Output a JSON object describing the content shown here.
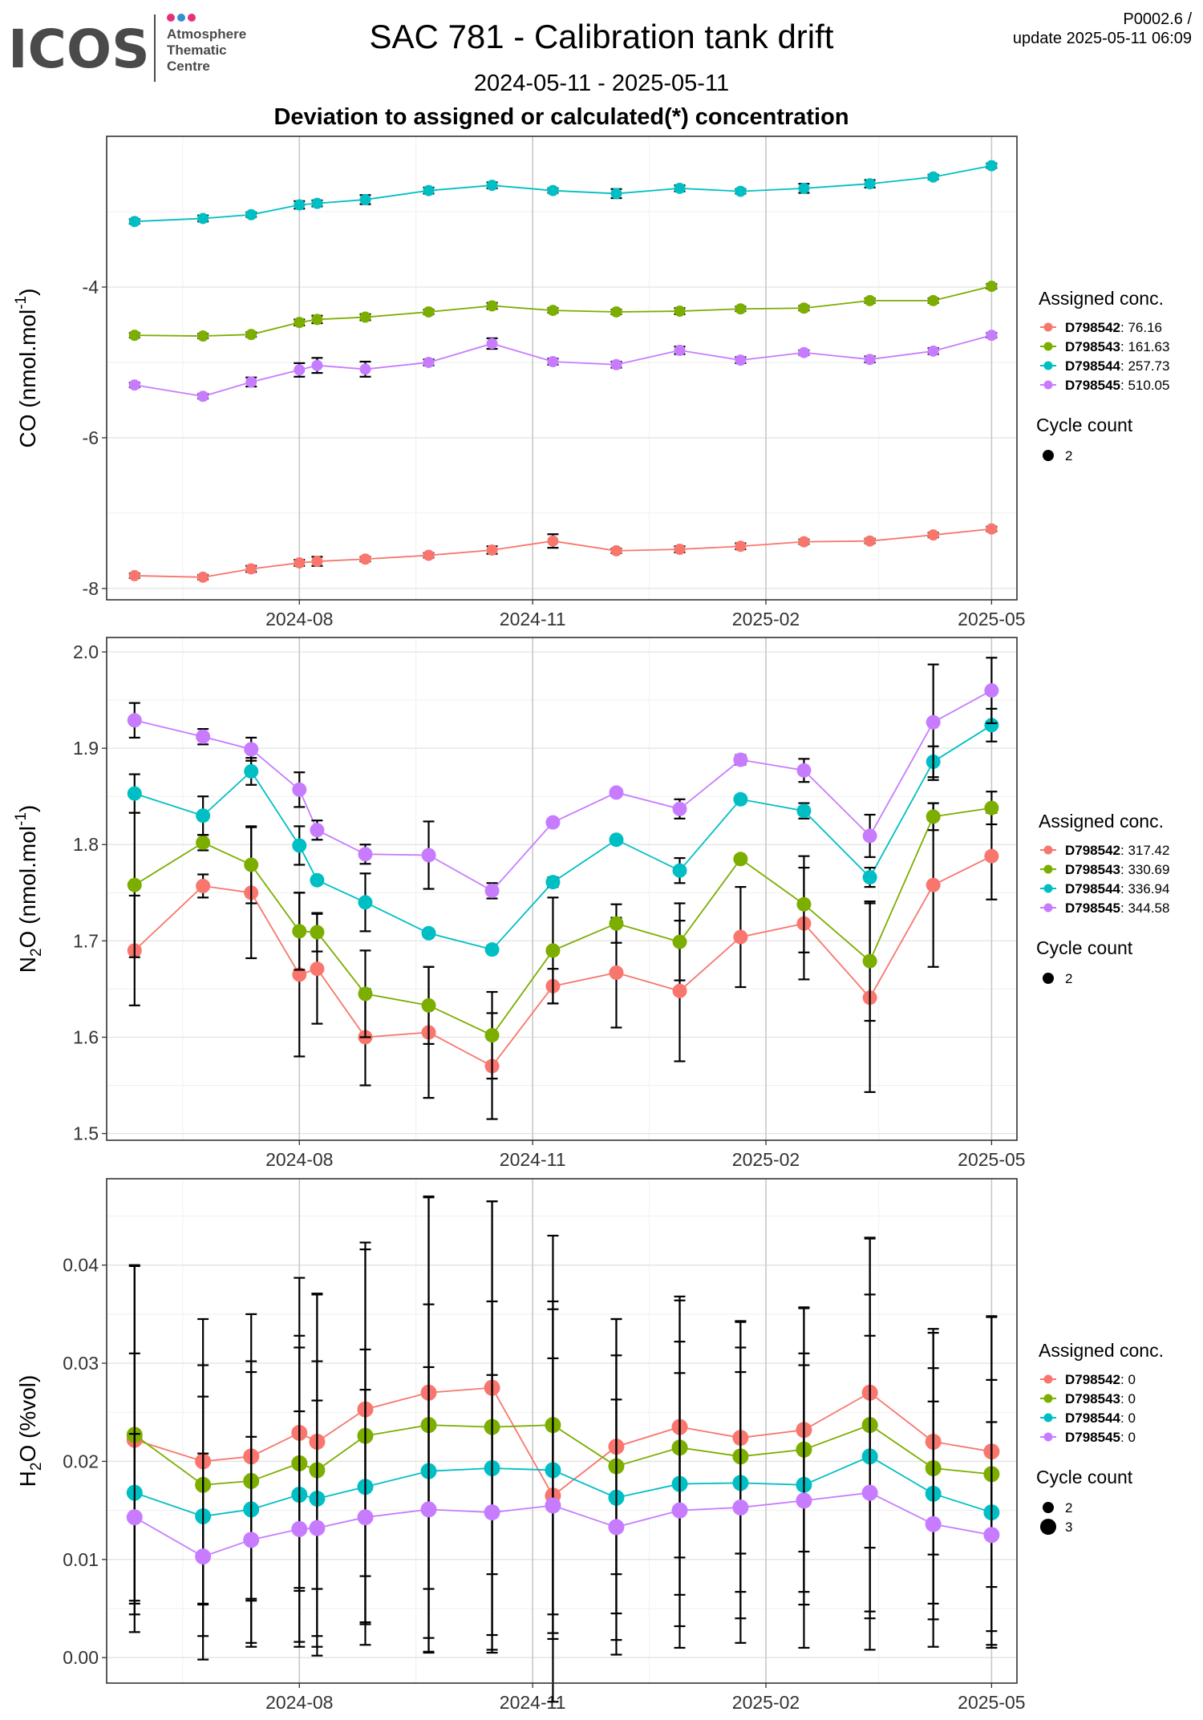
{
  "header": {
    "logo_text": "ICOS",
    "logo_sub": [
      "Atmosphere",
      "Thematic",
      "Centre"
    ],
    "title": "SAC 781 - Calibration tank drift",
    "date_range": "2024-05-11 - 2025-05-11",
    "subtitle": "Deviation to assigned or calculated(*) concentration",
    "version": "P0002.6 /",
    "update": "update  2025-05-11 06:09"
  },
  "colors": {
    "D798542": "#F8766D",
    "D798543": "#7CAE00",
    "D798544": "#00BFC4",
    "D798545": "#C77CFF",
    "logo_dots": [
      "#e6317a",
      "#2f93d1",
      "#e6317a"
    ]
  },
  "chart_data": [
    {
      "type": "line",
      "ylabel": "CO (nmol.mol-1)",
      "ylabel_base": "CO (nmol.mol",
      "ylabel_sup": "-1",
      "ylabel_end": ")",
      "ylim": [
        -8.15,
        -2.0
      ],
      "yticks": [
        -8,
        -6,
        -4
      ],
      "xlim": [
        "2024-05-17",
        "2025-05-11"
      ],
      "xticks": [
        "2024-08-01",
        "2024-11-01",
        "2025-02-01",
        "2025-05-01"
      ],
      "xtick_labels": [
        "2024-08",
        "2024-11",
        "2025-02",
        "2025-05"
      ],
      "legend_title": "Assigned conc.",
      "size_title": "Cycle count",
      "size_entries": [
        {
          "label": "2",
          "r": 7
        }
      ],
      "legend": [
        {
          "id": "D798542",
          "value": ": 76.16"
        },
        {
          "id": "D798543",
          "value": ": 161.63"
        },
        {
          "id": "D798544",
          "value": ": 257.73"
        },
        {
          "id": "D798545",
          "value": ": 510.05"
        }
      ],
      "x": [
        "2024-05-28",
        "2024-06-24",
        "2024-07-13",
        "2024-08-01",
        "2024-08-08",
        "2024-08-27",
        "2024-09-21",
        "2024-10-16",
        "2024-11-09",
        "2024-12-04",
        "2024-12-29",
        "2025-01-22",
        "2025-02-16",
        "2025-03-14",
        "2025-04-08",
        "2025-05-01"
      ],
      "series": [
        {
          "id": "D798542",
          "y": [
            -7.83,
            -7.85,
            -7.74,
            -7.66,
            -7.64,
            -7.61,
            -7.56,
            -7.49,
            -7.37,
            -7.5,
            -7.48,
            -7.44,
            -7.38,
            -7.37,
            -7.29,
            -7.21
          ],
          "err": [
            0.03,
            0.03,
            0.04,
            0.04,
            0.06,
            0.03,
            0.03,
            0.05,
            0.09,
            0.03,
            0.04,
            0.04,
            0.03,
            0.03,
            0.03,
            0.03
          ]
        },
        {
          "id": "D798543",
          "y": [
            -4.64,
            -4.65,
            -4.63,
            -4.47,
            -4.43,
            -4.4,
            -4.33,
            -4.25,
            -4.31,
            -4.33,
            -4.32,
            -4.29,
            -4.28,
            -4.18,
            -4.18,
            -3.99
          ],
          "err": [
            0.03,
            0.03,
            0.03,
            0.04,
            0.05,
            0.04,
            0.03,
            0.04,
            0.03,
            0.03,
            0.04,
            0.03,
            0.03,
            0.03,
            0.03,
            0.03
          ]
        },
        {
          "id": "D798544",
          "y": [
            -3.13,
            -3.09,
            -3.04,
            -2.91,
            -2.89,
            -2.84,
            -2.72,
            -2.65,
            -2.72,
            -2.76,
            -2.69,
            -2.73,
            -2.69,
            -2.63,
            -2.54,
            -2.39
          ],
          "err": [
            0.03,
            0.04,
            0.03,
            0.05,
            0.04,
            0.06,
            0.04,
            0.04,
            0.03,
            0.06,
            0.04,
            0.03,
            0.06,
            0.05,
            0.03,
            0.03
          ]
        },
        {
          "id": "D798545",
          "y": [
            -5.3,
            -5.45,
            -5.26,
            -5.1,
            -5.04,
            -5.09,
            -5.0,
            -4.75,
            -4.99,
            -5.03,
            -4.84,
            -4.97,
            -4.87,
            -4.96,
            -4.85,
            -4.64
          ],
          "err": [
            0.03,
            0.03,
            0.06,
            0.09,
            0.1,
            0.1,
            0.04,
            0.07,
            0.04,
            0.04,
            0.05,
            0.04,
            0.03,
            0.04,
            0.04,
            0.03
          ]
        }
      ]
    },
    {
      "type": "line",
      "ylabel": "N2O (nmol.mol-1)",
      "ylabel_base": "N",
      "ylabel_sub": "2",
      "ylabel_mid": "O (nmol.mol",
      "ylabel_sup": "-1",
      "ylabel_end": ")",
      "ylim": [
        1.493,
        2.015
      ],
      "yticks": [
        1.5,
        1.6,
        1.7,
        1.8,
        1.9,
        2.0
      ],
      "ytick_labels": [
        "1.5",
        "1.6",
        "1.7",
        "1.8",
        "1.9",
        "2.0"
      ],
      "xlim": [
        "2024-05-17",
        "2025-05-11"
      ],
      "xticks": [
        "2024-08-01",
        "2024-11-01",
        "2025-02-01",
        "2025-05-01"
      ],
      "xtick_labels": [
        "2024-08",
        "2024-11",
        "2025-02",
        "2025-05"
      ],
      "legend_title": "Assigned conc.",
      "size_title": "Cycle count",
      "size_entries": [
        {
          "label": "2",
          "r": 7
        }
      ],
      "legend": [
        {
          "id": "D798542",
          "value": ": 317.42"
        },
        {
          "id": "D798543",
          "value": ": 330.69"
        },
        {
          "id": "D798544",
          "value": ": 336.94"
        },
        {
          "id": "D798545",
          "value": ": 344.58"
        }
      ],
      "x": [
        "2024-05-28",
        "2024-06-24",
        "2024-07-13",
        "2024-08-01",
        "2024-08-08",
        "2024-08-27",
        "2024-09-21",
        "2024-10-16",
        "2024-11-09",
        "2024-12-04",
        "2024-12-29",
        "2025-01-22",
        "2025-02-16",
        "2025-03-14",
        "2025-04-08",
        "2025-05-01"
      ],
      "series": [
        {
          "id": "D798542",
          "y": [
            1.69,
            1.757,
            1.75,
            1.665,
            1.671,
            1.6,
            1.605,
            1.57,
            1.653,
            1.667,
            1.648,
            1.704,
            1.718,
            1.641,
            1.758,
            1.788
          ],
          "err": [
            0.057,
            0.012,
            0.068,
            0.085,
            0.057,
            0.05,
            0.068,
            0.055,
            0.018,
            0.057,
            0.073,
            0.052,
            0.058,
            0.098,
            0.085,
            0.045
          ]
        },
        {
          "id": "D798543",
          "y": [
            1.758,
            1.802,
            1.779,
            1.71,
            1.709,
            1.645,
            1.633,
            1.602,
            1.69,
            1.718,
            1.699,
            1.785,
            1.738,
            1.679,
            1.829,
            1.838
          ],
          "err": [
            0.075,
            0.008,
            0.04,
            0.04,
            0.02,
            0.045,
            0.04,
            0.045,
            0.055,
            0.02,
            0.04,
            0.003,
            0.05,
            0.062,
            0.014,
            0.017
          ]
        },
        {
          "id": "D798544",
          "y": [
            1.853,
            1.83,
            1.876,
            1.799,
            1.763,
            1.74,
            1.708,
            1.691,
            1.761,
            1.805,
            1.773,
            1.847,
            1.835,
            1.766,
            1.886,
            1.924
          ],
          "err": [
            0.02,
            0.02,
            0.014,
            0.02,
            0.004,
            0.03,
            0.004,
            0.003,
            0.005,
            0.003,
            0.013,
            0.004,
            0.008,
            0.01,
            0.016,
            0.017
          ]
        },
        {
          "id": "D798545",
          "y": [
            1.929,
            1.912,
            1.899,
            1.857,
            1.815,
            1.79,
            1.789,
            1.752,
            1.823,
            1.854,
            1.837,
            1.888,
            1.877,
            1.809,
            1.927,
            1.96
          ],
          "err": [
            0.018,
            0.008,
            0.012,
            0.018,
            0.01,
            0.01,
            0.035,
            0.008,
            0.003,
            0.003,
            0.01,
            0.005,
            0.012,
            0.022,
            0.06,
            0.034
          ]
        }
      ]
    },
    {
      "type": "line",
      "ylabel": "H2O (%vol)",
      "ylabel_base": "H",
      "ylabel_sub": "2",
      "ylabel_mid": "O (%vol)",
      "ylim": [
        -0.0026,
        0.0488
      ],
      "yticks": [
        0.0,
        0.01,
        0.02,
        0.03,
        0.04
      ],
      "ytick_labels": [
        "0.00",
        "0.01",
        "0.02",
        "0.03",
        "0.04"
      ],
      "xlim": [
        "2024-05-17",
        "2025-05-11"
      ],
      "xticks": [
        "2024-08-01",
        "2024-11-01",
        "2025-02-01",
        "2025-05-01"
      ],
      "xtick_labels": [
        "2024-08",
        "2024-11",
        "2025-02",
        "2025-05"
      ],
      "legend_title": "Assigned conc.",
      "size_title": "Cycle count",
      "size_entries": [
        {
          "label": "2",
          "r": 7
        },
        {
          "label": "3",
          "r": 10
        }
      ],
      "legend": [
        {
          "id": "D798542",
          "value": ": 0"
        },
        {
          "id": "D798543",
          "value": ": 0"
        },
        {
          "id": "D798544",
          "value": ": 0"
        },
        {
          "id": "D798545",
          "value": ": 0"
        }
      ],
      "x": [
        "2024-05-28",
        "2024-06-24",
        "2024-07-13",
        "2024-08-01",
        "2024-08-08",
        "2024-08-27",
        "2024-09-21",
        "2024-10-16",
        "2024-11-09",
        "2024-12-04",
        "2024-12-29",
        "2025-01-22",
        "2025-02-16",
        "2025-03-14",
        "2025-04-08",
        "2025-05-01"
      ],
      "series": [
        {
          "id": "D798542",
          "y": [
            0.0222,
            0.02,
            0.0205,
            0.0229,
            0.022,
            0.0253,
            0.027,
            0.0275,
            0.0165,
            0.0215,
            0.0235,
            0.0224,
            0.0232,
            0.027,
            0.022,
            0.021
          ],
          "err": [
            0.0178,
            0.0145,
            0.0145,
            0.0158,
            0.015,
            0.017,
            0.02,
            0.019,
            0.014,
            0.013,
            0.0133,
            0.0118,
            0.0124,
            0.0158,
            0.0115,
            0.0138
          ]
        },
        {
          "id": "D798543",
          "y": [
            0.0227,
            0.0176,
            0.018,
            0.0198,
            0.0191,
            0.0226,
            0.0237,
            0.0235,
            0.0237,
            0.0195,
            0.0214,
            0.0205,
            0.0212,
            0.0237,
            0.0193,
            0.0187
          ],
          "err": [
            0.0172,
            0.0122,
            0.0122,
            0.013,
            0.018,
            0.019,
            0.0232,
            0.023,
            0.0193,
            0.015,
            0.015,
            0.0138,
            0.0145,
            0.019,
            0.0138,
            0.016
          ]
        },
        {
          "id": "D798544",
          "y": [
            0.0168,
            0.0144,
            0.0151,
            0.0166,
            0.0162,
            0.0174,
            0.019,
            0.0193,
            0.0191,
            0.0163,
            0.0177,
            0.0178,
            0.0176,
            0.0205,
            0.0167,
            0.0148
          ],
          "err": [
            0.0142,
            0.0122,
            0.014,
            0.015,
            0.014,
            0.014,
            0.017,
            0.017,
            0.0172,
            0.0145,
            0.0145,
            0.0138,
            0.0122,
            0.0165,
            0.0128,
            0.0135
          ]
        },
        {
          "id": "D798545",
          "y": [
            0.0143,
            0.0103,
            0.012,
            0.0131,
            0.0132,
            0.0143,
            0.0151,
            0.0148,
            0.0155,
            0.0133,
            0.015,
            0.0153,
            0.016,
            0.0168,
            0.0136,
            0.0125
          ],
          "err": [
            0.0085,
            0.0105,
            0.0105,
            0.012,
            0.013,
            0.013,
            0.0145,
            0.014,
            0.02,
            0.013,
            0.014,
            0.0138,
            0.015,
            0.016,
            0.0125,
            0.0115
          ]
        }
      ]
    }
  ]
}
